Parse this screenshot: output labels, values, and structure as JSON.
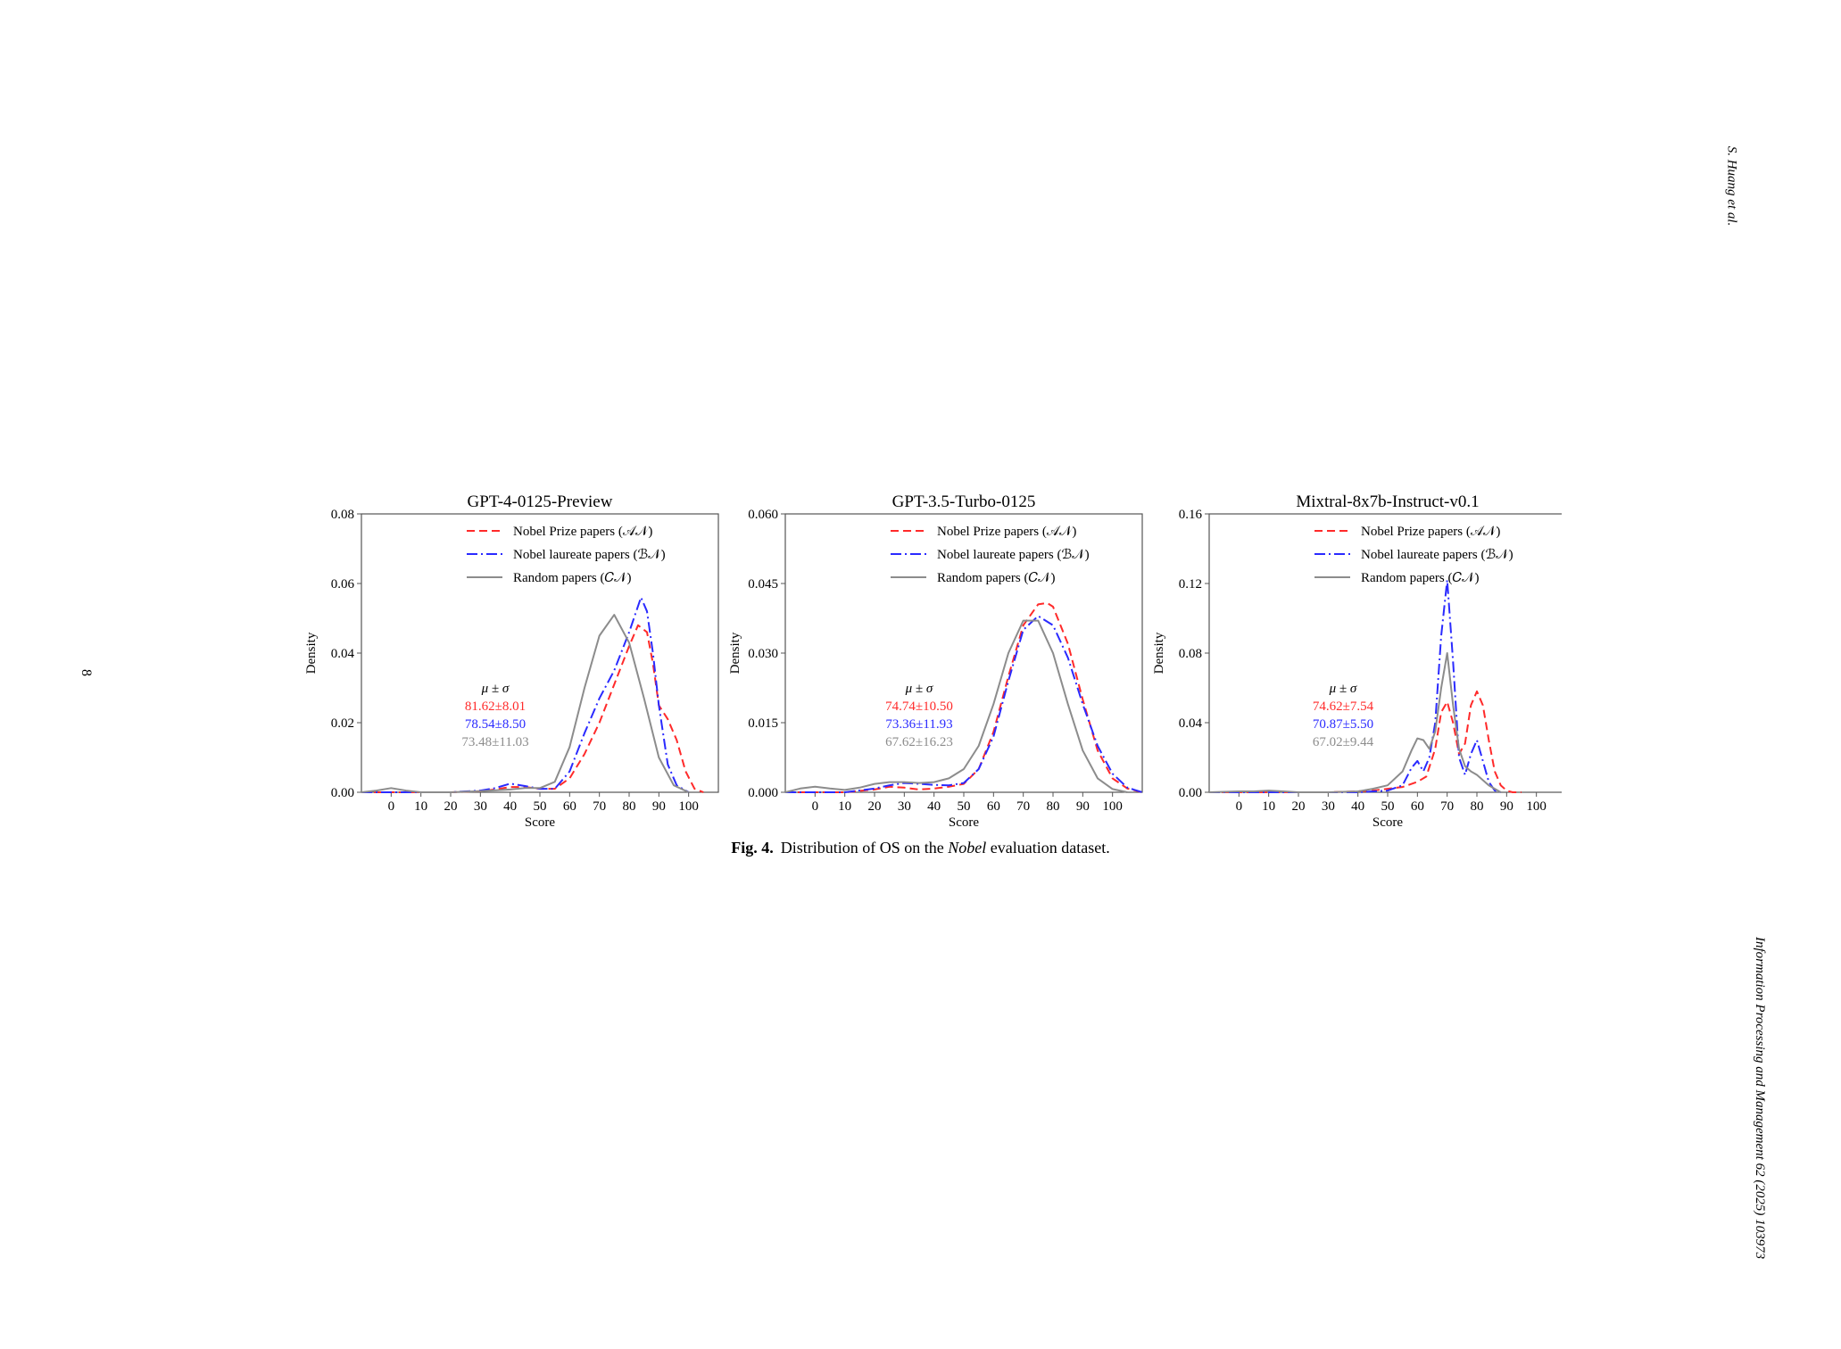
{
  "page": {
    "page_number": "8",
    "running_header": "S. Huang et al.",
    "journal": "Information Processing and Management 62 (2025) 103973"
  },
  "caption": {
    "label": "Fig. 4.",
    "text_before": "Distribution of OS on the ",
    "text_italic": "Nobel",
    "text_after": " evaluation dataset."
  },
  "colors": {
    "prize": "#ff2a2a",
    "laureate": "#2a2aff",
    "random": "#8c8c8c",
    "axis": "#555555"
  },
  "chart_data": [
    {
      "type": "line",
      "title": "GPT-4-0125-Preview",
      "xlabel": "Score",
      "ylabel": "Density",
      "xlim": [
        -10,
        110
      ],
      "ylim": [
        0,
        0.08
      ],
      "xticks": [
        0,
        10,
        20,
        30,
        40,
        50,
        60,
        70,
        80,
        90,
        100
      ],
      "yticks": [
        "0.00",
        "0.02",
        "0.04",
        "0.06",
        "0.08"
      ],
      "legend_position": "top-right",
      "stats_header": "μ ± σ",
      "series": [
        {
          "name": "Nobel Prize papers (𝒜𝒩)",
          "style": "dashed",
          "stat": "81.62±8.01",
          "x": [
            -10,
            0,
            20,
            30,
            35,
            40,
            45,
            50,
            55,
            60,
            65,
            70,
            75,
            80,
            83,
            86,
            88,
            90,
            93,
            96,
            99,
            102,
            105
          ],
          "y": [
            0,
            0,
            0,
            0.0003,
            0.0008,
            0.0015,
            0.0015,
            0.001,
            0.001,
            0.004,
            0.011,
            0.02,
            0.031,
            0.042,
            0.048,
            0.046,
            0.037,
            0.025,
            0.021,
            0.015,
            0.006,
            0.001,
            0
          ]
        },
        {
          "name": "Nobel laureate papers (ℬ𝒩)",
          "style": "dashdot",
          "stat": "78.54±8.50",
          "x": [
            -10,
            0,
            20,
            30,
            35,
            40,
            45,
            50,
            55,
            60,
            65,
            70,
            75,
            80,
            84,
            86,
            88,
            90,
            93,
            96,
            100
          ],
          "y": [
            0,
            0,
            0,
            0.0005,
            0.0012,
            0.0025,
            0.0018,
            0.001,
            0.001,
            0.006,
            0.017,
            0.027,
            0.035,
            0.046,
            0.056,
            0.052,
            0.04,
            0.025,
            0.008,
            0.002,
            0
          ]
        },
        {
          "name": "Random papers (𝐶𝒩)",
          "style": "solid",
          "stat": "73.48±11.03",
          "x": [
            -10,
            -5,
            0,
            5,
            10,
            20,
            30,
            40,
            45,
            50,
            55,
            60,
            65,
            70,
            75,
            80,
            85,
            90,
            95,
            100
          ],
          "y": [
            0,
            0.0005,
            0.0012,
            0.0005,
            0,
            0,
            0.0003,
            0.0008,
            0.0012,
            0.0012,
            0.003,
            0.013,
            0.03,
            0.045,
            0.051,
            0.043,
            0.027,
            0.01,
            0.002,
            0
          ]
        }
      ]
    },
    {
      "type": "line",
      "title": "GPT-3.5-Turbo-0125",
      "xlabel": "Score",
      "ylabel": "Density",
      "xlim": [
        -10,
        110
      ],
      "ylim": [
        0,
        0.06
      ],
      "xticks": [
        0,
        10,
        20,
        30,
        40,
        50,
        60,
        70,
        80,
        90,
        100
      ],
      "yticks": [
        "0.000",
        "0.015",
        "0.030",
        "0.045",
        "0.060"
      ],
      "legend_position": "top-right",
      "stats_header": "μ ± σ",
      "series": [
        {
          "name": "Nobel Prize papers (𝒜𝒩)",
          "style": "dashed",
          "stat": "74.74±10.50",
          "x": [
            -10,
            10,
            20,
            25,
            30,
            35,
            40,
            45,
            50,
            55,
            60,
            65,
            70,
            75,
            78,
            80,
            85,
            90,
            95,
            100,
            105,
            110
          ],
          "y": [
            0,
            0,
            0.0006,
            0.0012,
            0.001,
            0.0006,
            0.0008,
            0.0012,
            0.0018,
            0.005,
            0.013,
            0.025,
            0.036,
            0.0405,
            0.0408,
            0.04,
            0.032,
            0.02,
            0.009,
            0.003,
            0.0008,
            0
          ]
        },
        {
          "name": "Nobel laureate papers (ℬ𝒩)",
          "style": "dashdot",
          "stat": "73.36±11.93",
          "x": [
            -10,
            10,
            20,
            25,
            30,
            35,
            40,
            45,
            50,
            55,
            60,
            65,
            70,
            75,
            80,
            85,
            90,
            95,
            100,
            105,
            110
          ],
          "y": [
            0,
            0,
            0.0008,
            0.0015,
            0.002,
            0.0018,
            0.0016,
            0.0015,
            0.002,
            0.005,
            0.012,
            0.024,
            0.035,
            0.038,
            0.036,
            0.029,
            0.019,
            0.01,
            0.004,
            0.001,
            0
          ]
        },
        {
          "name": "Random papers (𝐶𝒩)",
          "style": "solid",
          "stat": "67.62±16.23",
          "x": [
            -10,
            -5,
            0,
            5,
            10,
            15,
            20,
            25,
            30,
            35,
            40,
            45,
            50,
            55,
            60,
            65,
            70,
            75,
            80,
            85,
            90,
            95,
            100,
            105
          ],
          "y": [
            0,
            0.0008,
            0.0012,
            0.0008,
            0.0005,
            0.001,
            0.0018,
            0.0022,
            0.0022,
            0.002,
            0.0022,
            0.003,
            0.005,
            0.01,
            0.019,
            0.03,
            0.037,
            0.037,
            0.03,
            0.019,
            0.009,
            0.003,
            0.0007,
            0
          ]
        }
      ]
    },
    {
      "type": "line",
      "title": "Mixtral-8x7b-Instruct-v0.1",
      "xlabel": "Score",
      "ylabel": "Density",
      "xlim": [
        -10,
        110
      ],
      "ylim": [
        0,
        0.16
      ],
      "xticks": [
        0,
        10,
        20,
        30,
        40,
        50,
        60,
        70,
        80,
        90,
        100
      ],
      "yticks": [
        "0.00",
        "0.04",
        "0.08",
        "0.12",
        "0.16"
      ],
      "legend_position": "top-right",
      "stats_header": "μ ± σ",
      "series": [
        {
          "name": "Nobel Prize papers (𝒜𝒩)",
          "style": "dashed",
          "stat": "74.62±7.54",
          "x": [
            -10,
            30,
            40,
            45,
            50,
            55,
            60,
            63,
            66,
            68,
            70,
            72,
            74,
            76,
            78,
            80,
            82,
            84,
            86,
            88,
            90,
            92,
            95
          ],
          "y": [
            0,
            0,
            0.0005,
            0.001,
            0.002,
            0.003,
            0.006,
            0.009,
            0.025,
            0.046,
            0.052,
            0.04,
            0.022,
            0.028,
            0.05,
            0.058,
            0.05,
            0.03,
            0.012,
            0.004,
            0.001,
            0,
            0
          ]
        },
        {
          "name": "Nobel laureate papers (ℬ𝒩)",
          "style": "dashdot",
          "stat": "70.87±5.50",
          "x": [
            -10,
            40,
            50,
            55,
            58,
            60,
            62,
            64,
            66,
            68,
            70,
            72,
            74,
            76,
            78,
            80,
            82,
            84,
            86,
            88
          ],
          "y": [
            0,
            0,
            0.001,
            0.004,
            0.014,
            0.018,
            0.012,
            0.02,
            0.04,
            0.09,
            0.122,
            0.075,
            0.02,
            0.01,
            0.022,
            0.03,
            0.018,
            0.006,
            0.001,
            0
          ]
        },
        {
          "name": "Random papers (𝐶𝒩)",
          "style": "solid",
          "stat": "67.02±9.44",
          "x": [
            -10,
            0,
            5,
            10,
            15,
            20,
            30,
            40,
            45,
            50,
            55,
            58,
            60,
            62,
            64,
            66,
            68,
            70,
            72,
            74,
            76,
            78,
            80,
            84,
            88
          ],
          "y": [
            0,
            0.0005,
            0.0005,
            0.001,
            0.0005,
            0,
            0,
            0.0005,
            0.002,
            0.004,
            0.012,
            0.024,
            0.031,
            0.03,
            0.025,
            0.035,
            0.06,
            0.08,
            0.05,
            0.025,
            0.015,
            0.012,
            0.01,
            0.004,
            0
          ]
        }
      ]
    }
  ]
}
